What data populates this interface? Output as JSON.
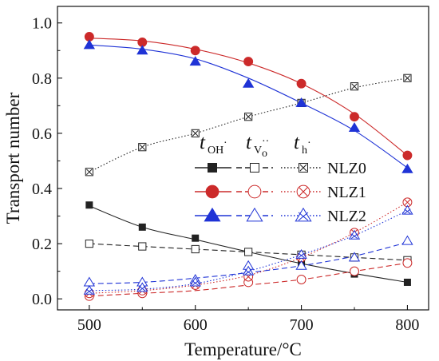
{
  "chart_data": {
    "type": "line",
    "xlabel": "Temperature/°C",
    "ylabel": "Transport number",
    "xlim": [
      470,
      820
    ],
    "ylim": [
      -0.04,
      1.06
    ],
    "x_ticks": [
      500,
      600,
      700,
      800
    ],
    "y_ticks": [
      0.0,
      0.2,
      0.4,
      0.6,
      0.8,
      1.0
    ],
    "x": [
      500,
      550,
      600,
      650,
      700,
      750,
      800
    ],
    "legend_columns": [
      "OH",
      "V",
      "h"
    ],
    "legend_placement": "center-right",
    "series": [
      {
        "name": "NLZ0",
        "carrier": "OH",
        "color": "#222222",
        "marker": "square-filled",
        "line": "solid",
        "fit": [
          0.337,
          0.26,
          0.215,
          0.17,
          0.128,
          0.092,
          0.06
        ],
        "values": [
          0.34,
          0.26,
          0.22,
          0.17,
          0.13,
          0.09,
          0.06
        ]
      },
      {
        "name": "NLZ0",
        "carrier": "V",
        "color": "#222222",
        "marker": "square-open",
        "line": "dashed",
        "fit": [
          0.2,
          0.19,
          0.18,
          0.17,
          0.16,
          0.15,
          0.14
        ],
        "values": [
          0.2,
          0.19,
          0.18,
          0.17,
          0.16,
          0.15,
          0.14
        ]
      },
      {
        "name": "NLZ0",
        "carrier": "h",
        "color": "#222222",
        "marker": "square-cross",
        "line": "dotted",
        "fit": [
          0.46,
          0.55,
          0.6,
          0.66,
          0.71,
          0.765,
          0.8
        ],
        "values": [
          0.46,
          0.55,
          0.6,
          0.66,
          0.71,
          0.77,
          0.8
        ]
      },
      {
        "name": "NLZ1",
        "carrier": "OH",
        "color": "#cc2a2a",
        "marker": "circle-filled",
        "line": "solid",
        "fit": [
          0.945,
          0.935,
          0.905,
          0.855,
          0.78,
          0.67,
          0.52
        ],
        "values": [
          0.95,
          0.93,
          0.9,
          0.86,
          0.78,
          0.66,
          0.52
        ]
      },
      {
        "name": "NLZ1",
        "carrier": "V",
        "color": "#cc2a2a",
        "marker": "circle-open",
        "line": "dashed",
        "fit": [
          0.01,
          0.02,
          0.03,
          0.05,
          0.07,
          0.1,
          0.13
        ],
        "values": [
          0.01,
          0.02,
          0.05,
          0.06,
          0.07,
          0.1,
          0.13
        ]
      },
      {
        "name": "NLZ1",
        "carrier": "h",
        "color": "#cc2a2a",
        "marker": "circle-cross",
        "line": "dotted",
        "fit": [
          0.02,
          0.03,
          0.05,
          0.085,
          0.15,
          0.24,
          0.35
        ],
        "values": [
          0.02,
          0.03,
          0.05,
          0.08,
          0.15,
          0.24,
          0.35
        ]
      },
      {
        "name": "NLZ2",
        "carrier": "OH",
        "color": "#1f33d6",
        "marker": "triangle-filled",
        "line": "solid",
        "fit": [
          0.92,
          0.905,
          0.87,
          0.8,
          0.71,
          0.61,
          0.475
        ],
        "values": [
          0.92,
          0.9,
          0.86,
          0.78,
          0.71,
          0.62,
          0.47
        ]
      },
      {
        "name": "NLZ2",
        "carrier": "V",
        "color": "#1f33d6",
        "marker": "triangle-open",
        "line": "dashed",
        "fit": [
          0.055,
          0.06,
          0.075,
          0.095,
          0.12,
          0.155,
          0.205
        ],
        "values": [
          0.06,
          0.06,
          0.07,
          0.12,
          0.12,
          0.15,
          0.21
        ]
      },
      {
        "name": "NLZ2",
        "carrier": "h",
        "color": "#1f33d6",
        "marker": "triangle-cross",
        "line": "dotted",
        "fit": [
          0.03,
          0.035,
          0.055,
          0.1,
          0.16,
          0.23,
          0.32
        ],
        "values": [
          0.03,
          0.04,
          0.06,
          0.1,
          0.16,
          0.23,
          0.32
        ]
      }
    ]
  }
}
